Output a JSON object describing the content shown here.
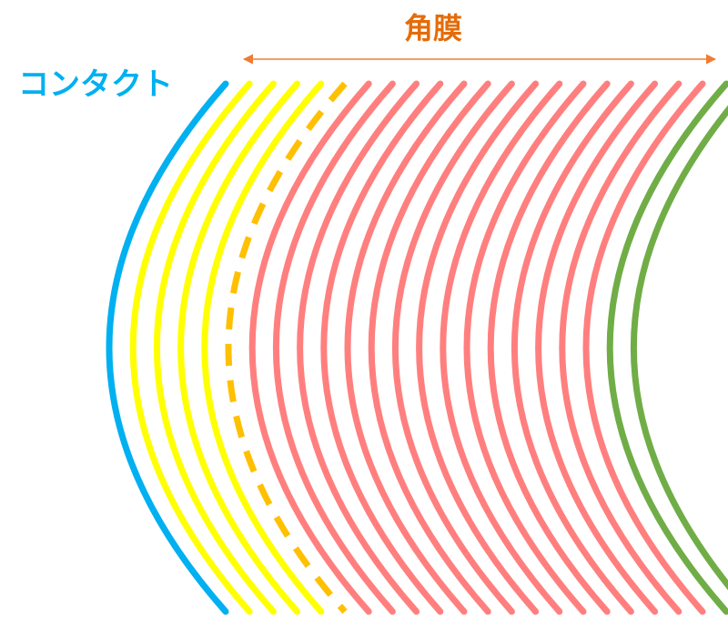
{
  "labels": {
    "cornea": "角膜",
    "contact": "コンタクト"
  },
  "colors": {
    "contact": "#00b0f0",
    "yellow": "#ffff00",
    "dashed": "#ffc000",
    "pink": "#ff7f7f",
    "green": "#70ad47",
    "cornea_label": "#e46c0a",
    "arrow": "#ed7d31"
  },
  "curves": [
    {
      "name": "contact-lens-curve",
      "color_key": "contact",
      "style": "solid"
    },
    {
      "name": "tear-layer-curve-1",
      "color_key": "yellow",
      "style": "solid"
    },
    {
      "name": "tear-layer-curve-2",
      "color_key": "yellow",
      "style": "solid"
    },
    {
      "name": "tear-layer-curve-3",
      "color_key": "yellow",
      "style": "solid"
    },
    {
      "name": "tear-layer-curve-4",
      "color_key": "yellow",
      "style": "solid"
    },
    {
      "name": "cornea-surface-dashed-curve",
      "color_key": "dashed",
      "style": "dashed"
    },
    {
      "name": "cornea-layer-curve-1",
      "color_key": "pink",
      "style": "solid"
    },
    {
      "name": "cornea-layer-curve-2",
      "color_key": "pink",
      "style": "solid"
    },
    {
      "name": "cornea-layer-curve-3",
      "color_key": "pink",
      "style": "solid"
    },
    {
      "name": "cornea-layer-curve-4",
      "color_key": "pink",
      "style": "solid"
    },
    {
      "name": "cornea-layer-curve-5",
      "color_key": "pink",
      "style": "solid"
    },
    {
      "name": "cornea-layer-curve-6",
      "color_key": "pink",
      "style": "solid"
    },
    {
      "name": "cornea-layer-curve-7",
      "color_key": "pink",
      "style": "solid"
    },
    {
      "name": "cornea-layer-curve-8",
      "color_key": "pink",
      "style": "solid"
    },
    {
      "name": "cornea-layer-curve-9",
      "color_key": "pink",
      "style": "solid"
    },
    {
      "name": "cornea-layer-curve-10",
      "color_key": "pink",
      "style": "solid"
    },
    {
      "name": "cornea-layer-curve-11",
      "color_key": "pink",
      "style": "solid"
    },
    {
      "name": "cornea-layer-curve-12",
      "color_key": "pink",
      "style": "solid"
    },
    {
      "name": "cornea-layer-curve-13",
      "color_key": "pink",
      "style": "solid"
    },
    {
      "name": "cornea-layer-curve-14",
      "color_key": "pink",
      "style": "solid"
    },
    {
      "name": "cornea-layer-curve-15",
      "color_key": "pink",
      "style": "solid"
    },
    {
      "name": "cornea-inner-curve-1",
      "color_key": "green",
      "style": "solid"
    },
    {
      "name": "cornea-inner-curve-2",
      "color_key": "green",
      "style": "solid"
    }
  ]
}
